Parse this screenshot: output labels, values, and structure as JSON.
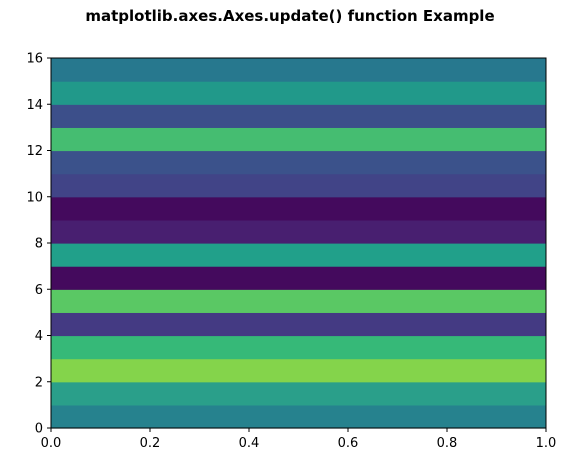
{
  "chart_data": {
    "type": "heatmap",
    "title": "matplotlib.axes.Axes.update() function Example",
    "xlabel": "",
    "ylabel": "",
    "xlim": [
      0,
      1
    ],
    "ylim": [
      0,
      16
    ],
    "x_ticks": [
      "0.0",
      "0.2",
      "0.4",
      "0.6",
      "0.8",
      "1.0"
    ],
    "y_ticks": [
      "0",
      "2",
      "4",
      "6",
      "8",
      "10",
      "12",
      "14",
      "16"
    ],
    "grid": false,
    "legend": "none",
    "colormap": "viridis",
    "bands": [
      {
        "y": [
          0,
          1
        ],
        "color": "#26828e"
      },
      {
        "y": [
          1,
          2
        ],
        "color": "#2a9f8a"
      },
      {
        "y": [
          2,
          3
        ],
        "color": "#84d44b"
      },
      {
        "y": [
          3,
          4
        ],
        "color": "#36b978"
      },
      {
        "y": [
          4,
          5
        ],
        "color": "#443a83"
      },
      {
        "y": [
          5,
          6
        ],
        "color": "#5ac864"
      },
      {
        "y": [
          6,
          7
        ],
        "color": "#440a5d"
      },
      {
        "y": [
          7,
          8
        ],
        "color": "#21a08a"
      },
      {
        "y": [
          8,
          9
        ],
        "color": "#481f70"
      },
      {
        "y": [
          9,
          10
        ],
        "color": "#440a5d"
      },
      {
        "y": [
          10,
          11
        ],
        "color": "#414487"
      },
      {
        "y": [
          11,
          12
        ],
        "color": "#3b528b"
      },
      {
        "y": [
          12,
          13
        ],
        "color": "#45bd71"
      },
      {
        "y": [
          13,
          14
        ],
        "color": "#3c4f8a"
      },
      {
        "y": [
          14,
          15
        ],
        "color": "#21998a"
      },
      {
        "y": [
          15,
          16
        ],
        "color": "#27788e"
      }
    ]
  }
}
